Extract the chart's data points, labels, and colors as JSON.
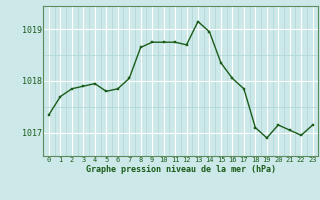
{
  "x": [
    0,
    1,
    2,
    3,
    4,
    5,
    6,
    7,
    8,
    9,
    10,
    11,
    12,
    13,
    14,
    15,
    16,
    17,
    18,
    19,
    20,
    21,
    22,
    23
  ],
  "y": [
    1017.35,
    1017.7,
    1017.85,
    1017.9,
    1017.95,
    1017.8,
    1017.85,
    1018.05,
    1018.65,
    1018.75,
    1018.75,
    1018.75,
    1018.7,
    1019.15,
    1018.95,
    1018.35,
    1018.05,
    1017.85,
    1017.1,
    1016.9,
    1017.15,
    1017.05,
    1016.95,
    1017.15
  ],
  "line_color": "#1a5c1a",
  "marker_color": "#1a5c1a",
  "bg_color": "#cce8e8",
  "grid_color_major": "#ffffff",
  "grid_color_minor": "#aed4d4",
  "xlabel": "Graphe pression niveau de la mer (hPa)",
  "xlabel_color": "#1a5c1a",
  "tick_color": "#1a5c1a",
  "yticks": [
    1017,
    1018,
    1019
  ],
  "ylim": [
    1016.55,
    1019.45
  ],
  "xlim": [
    -0.5,
    23.5
  ],
  "xtick_labels": [
    "0",
    "1",
    "2",
    "3",
    "4",
    "5",
    "6",
    "7",
    "8",
    "9",
    "10",
    "11",
    "12",
    "13",
    "14",
    "15",
    "16",
    "17",
    "18",
    "19",
    "20",
    "21",
    "22",
    "23"
  ],
  "spine_color": "#5c8c5c"
}
